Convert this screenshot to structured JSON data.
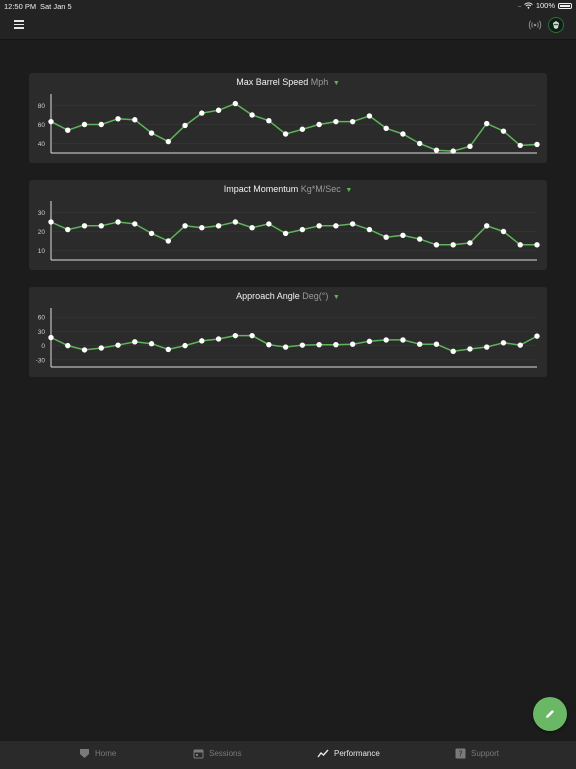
{
  "status": {
    "time": "12:50 PM",
    "date": "Sat Jan 5",
    "battery": "100%",
    "cellular": "....."
  },
  "colors": {
    "accent": "#5fb35a",
    "line": "#5fb35a",
    "point": "#ffffff",
    "card": "#2b2b2b",
    "background": "#1c1c1c"
  },
  "header": {
    "menu_icon": "hamburger-icon",
    "broadcast_icon": "broadcast-icon",
    "avatar_icon": "team-logo-icon"
  },
  "charts": [
    {
      "title": "Max Barrel Speed",
      "unit": "Mph",
      "caret_icon": "caret-down-icon"
    },
    {
      "title": "Impact Momentum",
      "unit": "Kg*M/Sec",
      "caret_icon": "caret-down-icon"
    },
    {
      "title": "Approach Angle",
      "unit": "Deg(°)",
      "caret_icon": "caret-down-icon"
    }
  ],
  "chart_data": [
    {
      "type": "line",
      "title": "Max Barrel Speed",
      "ylabel": "Mph",
      "yticks": [
        40,
        60,
        80
      ],
      "ylim": [
        30,
        90
      ],
      "grid": true,
      "values": [
        63,
        54,
        60,
        60,
        66,
        65,
        51,
        42,
        59,
        72,
        75,
        82,
        70,
        64,
        50,
        55,
        60,
        63,
        63,
        69,
        56,
        50,
        40,
        33,
        32,
        37,
        61,
        53,
        38,
        39
      ]
    },
    {
      "type": "line",
      "title": "Impact Momentum",
      "ylabel": "Kg*M/Sec",
      "yticks": [
        10,
        20,
        30
      ],
      "ylim": [
        5,
        35
      ],
      "grid": true,
      "values": [
        25,
        21,
        23,
        23,
        25,
        24,
        19,
        15,
        23,
        22,
        23,
        25,
        22,
        24,
        19,
        21,
        23,
        23,
        24,
        21,
        17,
        18,
        16,
        13,
        13,
        14,
        23,
        20,
        13,
        13
      ]
    },
    {
      "type": "line",
      "title": "Approach Angle",
      "ylabel": "Deg(°)",
      "yticks": [
        -30,
        0,
        30,
        60
      ],
      "ylim": [
        -45,
        75
      ],
      "grid": true,
      "values": [
        17,
        0,
        -9,
        -5,
        1,
        8,
        4,
        -8,
        0,
        10,
        14,
        21,
        21,
        2,
        -3,
        1,
        2,
        2,
        3,
        9,
        12,
        12,
        3,
        3,
        -12,
        -7,
        -3,
        6,
        1,
        20
      ]
    }
  ],
  "fab": {
    "icon": "pencil-icon"
  },
  "tabs": [
    {
      "label": "Home",
      "icon": "home-shield-icon",
      "active": false
    },
    {
      "label": "Sessions",
      "icon": "calendar-icon",
      "active": false
    },
    {
      "label": "Performance",
      "icon": "trend-line-icon",
      "active": true
    },
    {
      "label": "Support",
      "icon": "question-icon",
      "active": false
    }
  ]
}
